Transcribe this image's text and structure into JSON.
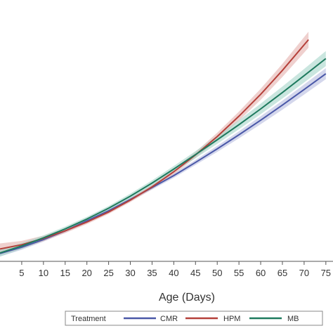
{
  "chart_data": {
    "type": "line",
    "xlabel": "Age (Days)",
    "ylabel": "",
    "xlim": [
      0,
      76
    ],
    "ylim": [
      0,
      1
    ],
    "xticks": [
      5,
      10,
      15,
      20,
      25,
      30,
      35,
      40,
      45,
      50,
      55,
      60,
      65,
      70,
      75
    ],
    "xtick_labels": [
      "5",
      "10",
      "15",
      "20",
      "25",
      "30",
      "35",
      "40",
      "45",
      "50",
      "55",
      "60",
      "65",
      "70",
      "75"
    ],
    "grid": false,
    "legend": {
      "title": "Treatment",
      "placement": "bottom"
    },
    "series": [
      {
        "name": "CMR",
        "color": "#4a58a8",
        "band_color": "#b8bde0",
        "x": [
          0,
          5,
          10,
          15,
          20,
          25,
          30,
          35,
          40,
          45,
          50,
          55,
          60,
          65,
          70,
          75
        ],
        "y": [
          0.02,
          0.045,
          0.075,
          0.11,
          0.15,
          0.19,
          0.235,
          0.282,
          0.33,
          0.382,
          0.436,
          0.492,
          0.55,
          0.61,
          0.672,
          0.735
        ],
        "band": [
          0.012,
          0.01,
          0.008,
          0.007,
          0.007,
          0.007,
          0.007,
          0.008,
          0.009,
          0.01,
          0.012,
          0.014,
          0.016,
          0.018,
          0.02,
          0.022
        ]
      },
      {
        "name": "HPM",
        "color": "#b5403a",
        "band_color": "#e4b1ae",
        "x": [
          0,
          5,
          10,
          15,
          20,
          25,
          30,
          35,
          40,
          45,
          50,
          55,
          60,
          65,
          71
        ],
        "y": [
          0.038,
          0.055,
          0.08,
          0.11,
          0.145,
          0.185,
          0.232,
          0.285,
          0.345,
          0.412,
          0.485,
          0.566,
          0.653,
          0.748,
          0.87
        ],
        "band": [
          0.022,
          0.015,
          0.011,
          0.009,
          0.008,
          0.008,
          0.008,
          0.009,
          0.01,
          0.012,
          0.015,
          0.018,
          0.022,
          0.026,
          0.032
        ]
      },
      {
        "name": "MB",
        "color": "#1e7a5e",
        "band_color": "#a6d6ca",
        "x": [
          0,
          5,
          10,
          15,
          20,
          25,
          30,
          35,
          40,
          45,
          50,
          55,
          60,
          65,
          70,
          75
        ],
        "y": [
          0.022,
          0.05,
          0.082,
          0.118,
          0.157,
          0.2,
          0.248,
          0.3,
          0.356,
          0.413,
          0.472,
          0.532,
          0.595,
          0.66,
          0.727,
          0.795
        ],
        "band": [
          0.014,
          0.012,
          0.01,
          0.009,
          0.009,
          0.009,
          0.01,
          0.011,
          0.012,
          0.014,
          0.016,
          0.018,
          0.021,
          0.024,
          0.027,
          0.03
        ]
      }
    ]
  }
}
